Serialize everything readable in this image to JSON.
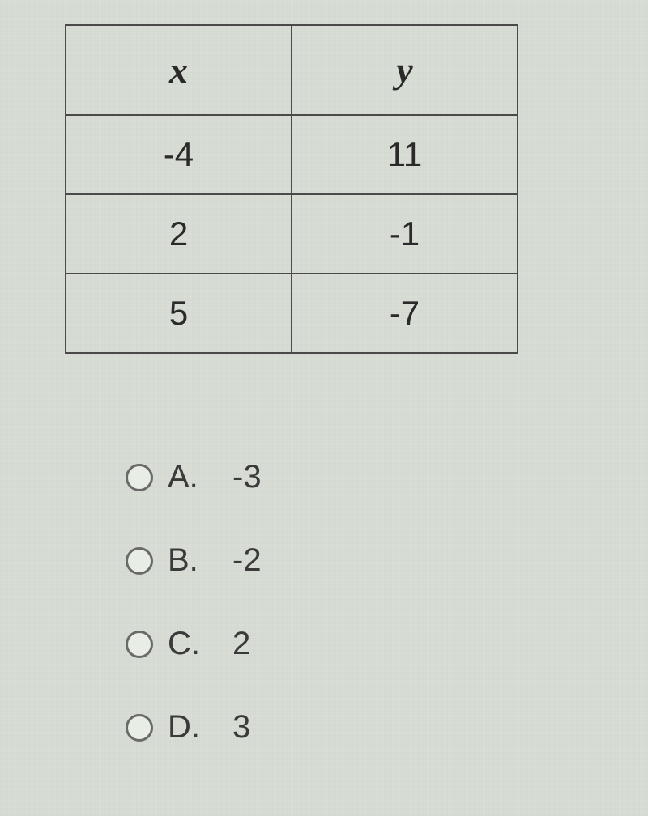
{
  "table": {
    "type": "table",
    "columns": [
      "x",
      "y"
    ],
    "rows": [
      [
        "-4",
        "11"
      ],
      [
        "2",
        "-1"
      ],
      [
        "5",
        "-7"
      ]
    ],
    "border_color": "#4a4a4a",
    "text_color": "#2a2a2a",
    "header_fontsize": 46,
    "cell_fontsize": 42,
    "col_widths": [
      0.5,
      0.5
    ]
  },
  "answers": {
    "options": [
      {
        "label": "A.",
        "value": "-3"
      },
      {
        "label": "B.",
        "value": "-2"
      },
      {
        "label": "C.",
        "value": "2"
      },
      {
        "label": "D.",
        "value": "3"
      }
    ],
    "radio_border_color": "#6a6a6a",
    "radio_fill_color": "#e8ede5",
    "fontsize": 40,
    "text_color": "#3a3a3a"
  },
  "background_color": "#d8ddd5"
}
